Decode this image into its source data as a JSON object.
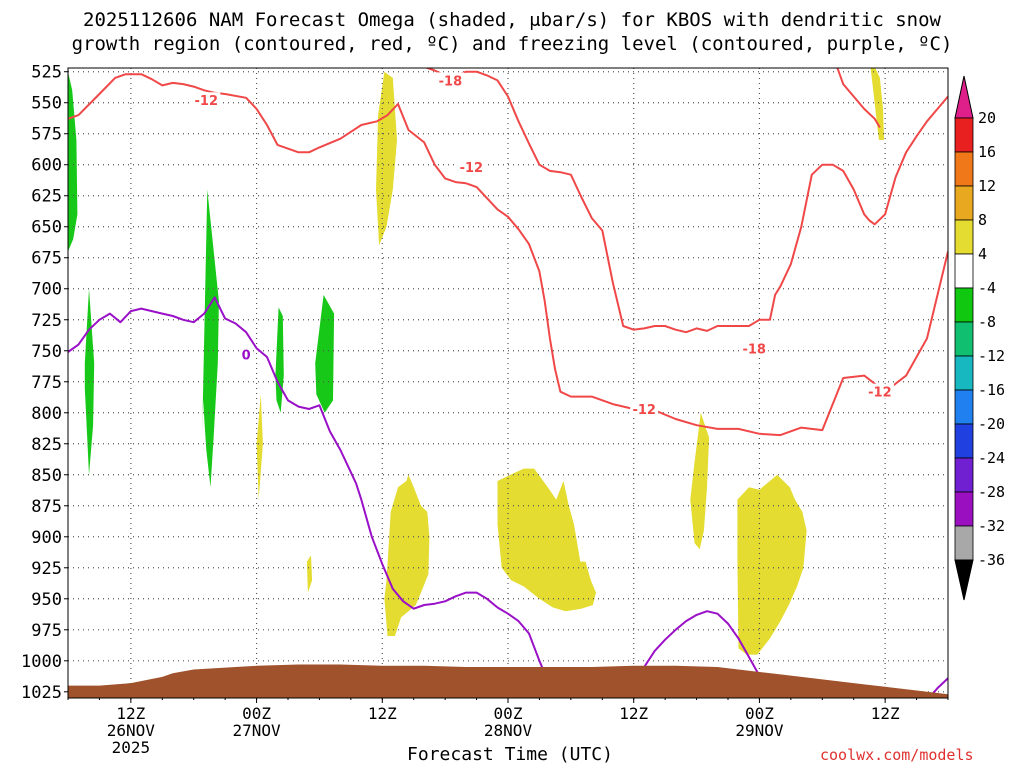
{
  "title_line1": "2025112606 NAM Forecast Omega (shaded, μbar/s) for KBOS with dendritic snow",
  "title_line2": "growth region (contoured, red, ºC) and freezing level (contoured, purple, ºC)",
  "xlabel": "Forecast Time (UTC)",
  "credit": "coolwx.com/models",
  "colors": {
    "temp_contour": "#f04848",
    "freezing_contour": "#9a10c8",
    "terrain": "#a0522d",
    "omega_pos": "#e4dc30",
    "omega_neg": "#18c818"
  },
  "chart_data": {
    "type": "heatmap",
    "x_ticks": [
      {
        "hour": 6,
        "label": "12Z",
        "label2": "26NOV",
        "label3": "2025"
      },
      {
        "hour": 18,
        "label": "00Z",
        "label2": "27NOV",
        "label3": ""
      },
      {
        "hour": 30,
        "label": "12Z",
        "label2": "",
        "label3": ""
      },
      {
        "hour": 42,
        "label": "00Z",
        "label2": "28NOV",
        "label3": ""
      },
      {
        "hour": 54,
        "label": "12Z",
        "label2": "",
        "label3": ""
      },
      {
        "hour": 66,
        "label": "00Z",
        "label2": "29NOV",
        "label3": ""
      },
      {
        "hour": 78,
        "label": "12Z",
        "label2": "",
        "label3": ""
      }
    ],
    "x_range_hours": [
      0,
      84
    ],
    "y_ticks": [
      525,
      550,
      575,
      600,
      625,
      650,
      675,
      700,
      725,
      750,
      775,
      800,
      825,
      850,
      875,
      900,
      925,
      950,
      975,
      1000,
      1025
    ],
    "y_range_hPa": [
      525,
      1030
    ],
    "grid": true,
    "colorbar_labels": [
      "20",
      "16",
      "12",
      "8",
      "4",
      "-4",
      "-8",
      "-12",
      "-16",
      "-20",
      "-24",
      "-28",
      "-32",
      "-36"
    ],
    "colorbar_colors": [
      "#e82020",
      "#f07818",
      "#e8a820",
      "#e4dc30",
      "#ffffff",
      "#10c810",
      "#10c070",
      "#18b8c0",
      "#2080f0",
      "#2040e0",
      "#7020d0",
      "#9a10c0",
      "#a8a8a8"
    ],
    "contour_labels": [
      {
        "text": "-12",
        "hour": 13.2,
        "p": 548,
        "color": "temp_contour"
      },
      {
        "text": "-18",
        "hour": 36.5,
        "p": 532,
        "color": "temp_contour"
      },
      {
        "text": "-12",
        "hour": 38.5,
        "p": 602,
        "color": "temp_contour"
      },
      {
        "text": "-12",
        "hour": 55.0,
        "p": 797,
        "color": "temp_contour"
      },
      {
        "text": "-18",
        "hour": 65.5,
        "p": 748,
        "color": "temp_contour"
      },
      {
        "text": "-12",
        "hour": 77.5,
        "p": 783,
        "color": "temp_contour"
      },
      {
        "text": "0",
        "hour": 17.0,
        "p": 753,
        "color": "freezing_contour"
      }
    ],
    "series": [
      {
        "style": "temp_contour",
        "x": [
          0,
          1,
          3,
          4.5,
          5.5,
          7,
          8,
          9,
          10,
          11,
          12,
          13,
          14,
          15,
          17,
          18,
          19,
          20,
          22,
          23,
          24,
          26,
          28,
          29.5,
          30.5,
          31.5,
          32.5,
          34,
          35,
          36,
          37,
          38
        ],
        "y": [
          563,
          560,
          543,
          530,
          527,
          527,
          531,
          536,
          534,
          535,
          537,
          540,
          542,
          543,
          546,
          555,
          568,
          584,
          590,
          590,
          586,
          579,
          568,
          565,
          560,
          551,
          572,
          582,
          600,
          611,
          614,
          615
        ]
      },
      {
        "style": "temp_contour",
        "x": [
          38,
          39,
          40,
          41,
          42,
          43,
          44,
          45,
          45.5,
          46,
          46.5,
          47,
          48,
          50,
          52,
          54,
          56,
          58,
          60,
          62,
          64,
          66,
          68,
          70,
          72,
          74,
          76,
          78,
          80,
          82,
          84
        ],
        "y": [
          615,
          618,
          627,
          636,
          642,
          652,
          664,
          686,
          710,
          740,
          765,
          783,
          787,
          787,
          793,
          797,
          798,
          805,
          810,
          813,
          813,
          817,
          818,
          812,
          814,
          772,
          770,
          783,
          770,
          740,
          670
        ]
      },
      {
        "style": "temp_contour",
        "x": [
          33,
          34,
          35,
          36,
          37,
          38,
          39,
          40,
          41,
          42,
          43,
          44,
          45,
          46,
          47,
          48,
          49,
          50,
          51,
          52,
          53,
          54,
          55,
          56,
          57,
          58,
          59,
          60,
          61,
          62,
          63,
          64,
          65,
          66,
          67,
          67.5,
          68,
          69,
          70,
          71,
          72,
          73,
          74,
          75,
          76,
          76.5,
          77,
          78,
          79,
          80,
          81,
          82,
          83,
          84
        ],
        "y": [
          521,
          521,
          524,
          528,
          528,
          525,
          525,
          528,
          532,
          545,
          565,
          583,
          600,
          605,
          606,
          608,
          626,
          643,
          653,
          695,
          730,
          733,
          732,
          730,
          730,
          733,
          735,
          732,
          734,
          730,
          730,
          730,
          730,
          725,
          725,
          705,
          698,
          680,
          650,
          608,
          600,
          600,
          605,
          620,
          640,
          645,
          648,
          640,
          610,
          590,
          577,
          565,
          555,
          545
        ]
      },
      {
        "style": "temp_contour",
        "x": [
          73.4,
          74,
          75,
          76,
          77,
          77.5
        ],
        "y": [
          521,
          535,
          545,
          555,
          563,
          570
        ]
      },
      {
        "style": "freezing_contour",
        "x": [
          0,
          1,
          2,
          3,
          4,
          5,
          6,
          7,
          8,
          9,
          10,
          11,
          12,
          13,
          14,
          15,
          16,
          17,
          18,
          19,
          20,
          21,
          22,
          23,
          24,
          25,
          26,
          27,
          27.5,
          28,
          29,
          30,
          31,
          32,
          33,
          34,
          35,
          36,
          37,
          38,
          39,
          40,
          41,
          42,
          43,
          44,
          45,
          46,
          47
        ],
        "y": [
          751,
          745,
          733,
          725,
          720,
          727,
          718,
          716,
          718,
          720,
          722,
          725,
          727,
          720,
          707,
          724,
          728,
          735,
          748,
          755,
          775,
          790,
          795,
          797,
          794,
          815,
          830,
          848,
          857,
          870,
          900,
          922,
          942,
          952,
          958,
          955,
          954,
          952,
          948,
          945,
          945,
          950,
          957,
          962,
          968,
          978,
          1000,
          1020,
          1035
        ]
      },
      {
        "style": "freezing_contour",
        "x": [
          53,
          54,
          55,
          56,
          57,
          58,
          59,
          60,
          61,
          62,
          63,
          64,
          65,
          66,
          67
        ],
        "y": [
          1035,
          1020,
          1005,
          992,
          983,
          975,
          968,
          963,
          960,
          962,
          970,
          982,
          997,
          1012,
          1030
        ]
      },
      {
        "style": "freezing_contour",
        "x": [
          82,
          83,
          84
        ],
        "y": [
          1032,
          1022,
          1014
        ]
      }
    ],
    "terrain_surface": {
      "x": [
        0,
        3,
        6,
        9,
        10,
        12,
        14,
        16,
        18,
        22,
        26,
        30,
        34,
        38,
        42,
        46,
        50,
        54,
        58,
        62,
        64,
        66,
        68,
        70,
        72,
        74,
        76,
        78,
        80,
        82,
        84
      ],
      "p": [
        1020,
        1020,
        1018,
        1013,
        1010,
        1007,
        1006,
        1005,
        1004,
        1003,
        1003,
        1004,
        1004,
        1005,
        1005,
        1005,
        1005,
        1004,
        1004,
        1005,
        1007,
        1009,
        1011,
        1013,
        1015,
        1017,
        1019,
        1021,
        1023,
        1025,
        1027
      ]
    },
    "omega_regions": [
      {
        "sign": "neg",
        "x": [
          0,
          0.4,
          0.8,
          0.9,
          0.5,
          0
        ],
        "p": [
          525,
          540,
          580,
          640,
          660,
          670
        ]
      },
      {
        "sign": "neg",
        "x": [
          1.6,
          2.0,
          2.5,
          2.4,
          2.0,
          1.8,
          1.6
        ],
        "p": [
          760,
          700,
          760,
          810,
          850,
          815,
          780
        ]
      },
      {
        "sign": "neg",
        "x": [
          12.8,
          13.3,
          14.4,
          14.3,
          13.9,
          13.6,
          13.2,
          12.9
        ],
        "p": [
          820,
          620,
          710,
          760,
          820,
          860,
          830,
          790
        ]
      },
      {
        "sign": "neg",
        "x": [
          19.8,
          20.1,
          20.5,
          20.6,
          20.3,
          19.9
        ],
        "p": [
          770,
          715,
          722,
          770,
          800,
          790
        ]
      },
      {
        "sign": "neg",
        "x": [
          23.6,
          24.4,
          25.4,
          25.3,
          24.5,
          23.7
        ],
        "p": [
          760,
          705,
          720,
          790,
          800,
          785
        ]
      },
      {
        "sign": "pos",
        "x": [
          18.0,
          18.4,
          18.6,
          18.2
        ],
        "p": [
          825,
          785,
          825,
          870
        ]
      },
      {
        "sign": "pos",
        "x": [
          22.8,
          23.2,
          23.3,
          22.9
        ],
        "p": [
          920,
          915,
          935,
          945
        ]
      },
      {
        "sign": "pos",
        "x": [
          29.6,
          30.2,
          31.0,
          31.4,
          31.0,
          30.4,
          29.7,
          29.4
        ],
        "p": [
          560,
          525,
          530,
          580,
          620,
          650,
          665,
          620
        ]
      },
      {
        "sign": "pos",
        "x": [
          30.4,
          30.8,
          31.5,
          32.3,
          32.5,
          33.0,
          33.7,
          34.3,
          34.5,
          34.4,
          33.7,
          33.2,
          32.5,
          31.8,
          31.2,
          30.5,
          30.2
        ],
        "p": [
          935,
          880,
          860,
          855,
          850,
          860,
          875,
          880,
          900,
          930,
          945,
          955,
          960,
          965,
          980,
          980,
          950
        ]
      },
      {
        "sign": "pos",
        "x": [
          41.0,
          43.5,
          44.5,
          45.8,
          46.6,
          47.3,
          47.8,
          48.3,
          48.9,
          49.4,
          49.9,
          50.4,
          50.1,
          49.0,
          47.5,
          46.3,
          45.0,
          43.5,
          42.3,
          41.4,
          41.0
        ],
        "p": [
          855,
          845,
          845,
          860,
          870,
          855,
          875,
          890,
          920,
          920,
          935,
          945,
          955,
          958,
          960,
          957,
          950,
          940,
          935,
          925,
          890
        ]
      },
      {
        "sign": "pos",
        "x": [
          59.8,
          60.4,
          61.2,
          61.0,
          60.7,
          60.3,
          59.8,
          59.4
        ],
        "p": [
          840,
          800,
          820,
          860,
          895,
          910,
          905,
          870
        ]
      },
      {
        "sign": "pos",
        "x": [
          63.9,
          65.0,
          66.0,
          67.0,
          67.7,
          68.3,
          68.9,
          69.4,
          70.1,
          70.5,
          70.2,
          69.6,
          68.8,
          68.0,
          67.0,
          65.8,
          64.8,
          64.0,
          63.9
        ],
        "p": [
          870,
          860,
          862,
          855,
          850,
          855,
          860,
          870,
          880,
          895,
          925,
          940,
          955,
          968,
          982,
          995,
          995,
          990,
          920
        ]
      },
      {
        "sign": "pos",
        "x": [
          76.6,
          77.0,
          77.5,
          77.8,
          77.9,
          77.4
        ],
        "p": [
          521,
          521,
          530,
          555,
          580,
          580
        ]
      }
    ]
  }
}
